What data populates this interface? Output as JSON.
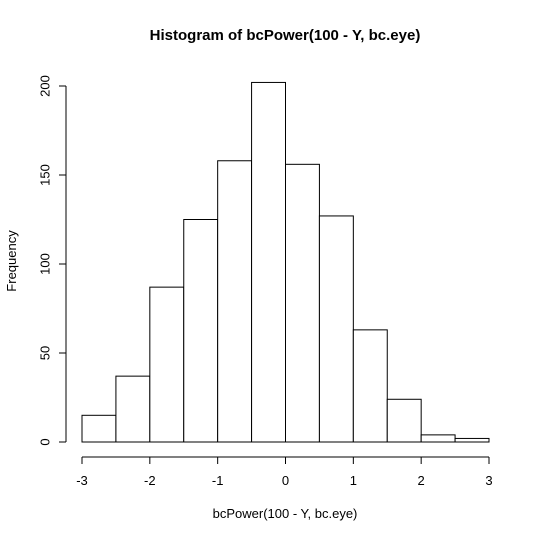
{
  "chart_data": {
    "type": "bar",
    "title": "Histogram of bcPower(100 - Y, bc.eye)",
    "xlabel": "bcPower(100 - Y, bc.eye)",
    "ylabel": "Frequency",
    "bins": [
      {
        "start": -3.0,
        "end": -2.5,
        "value": 15
      },
      {
        "start": -2.5,
        "end": -2.0,
        "value": 37
      },
      {
        "start": -2.0,
        "end": -1.5,
        "value": 87
      },
      {
        "start": -1.5,
        "end": -1.0,
        "value": 125
      },
      {
        "start": -1.0,
        "end": -0.5,
        "value": 158
      },
      {
        "start": -0.5,
        "end": 0.0,
        "value": 202
      },
      {
        "start": 0.0,
        "end": 0.5,
        "value": 156
      },
      {
        "start": 0.5,
        "end": 1.0,
        "value": 127
      },
      {
        "start": 1.0,
        "end": 1.5,
        "value": 63
      },
      {
        "start": 1.5,
        "end": 2.0,
        "value": 24
      },
      {
        "start": 2.0,
        "end": 2.5,
        "value": 4
      },
      {
        "start": 2.5,
        "end": 3.0,
        "value": 2
      }
    ],
    "xlim": [
      -3,
      3
    ],
    "ylim": [
      0,
      200
    ],
    "xticks": [
      "-3",
      "-2",
      "-1",
      "0",
      "1",
      "2",
      "3"
    ],
    "yticks": [
      "0",
      "50",
      "100",
      "150",
      "200"
    ],
    "grid": false,
    "legend": "none"
  }
}
